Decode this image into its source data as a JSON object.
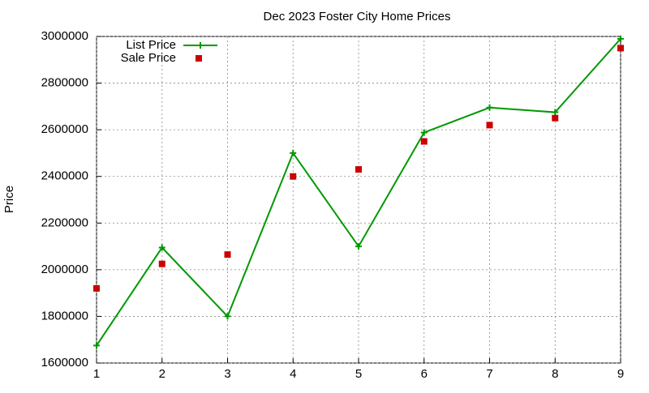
{
  "chart_data": {
    "type": "line",
    "title": "Dec 2023 Foster City Home Prices",
    "y_label": "Price",
    "x": [
      1,
      2,
      3,
      4,
      5,
      6,
      7,
      8,
      9
    ],
    "series": [
      {
        "name": "List Price",
        "color": "#009900",
        "style": "line",
        "values": [
          1675000,
          2095000,
          1800000,
          2500000,
          2100000,
          2588000,
          2695000,
          2675000,
          2990000
        ]
      },
      {
        "name": "Sale Price",
        "color": "#cc0000",
        "style": "points",
        "values": [
          1920000,
          2025000,
          2065000,
          2400000,
          2430000,
          2550000,
          2620000,
          2650000,
          2950000
        ]
      }
    ],
    "xlim": [
      1,
      9
    ],
    "xticks": [
      1,
      2,
      3,
      4,
      5,
      6,
      7,
      8,
      9
    ],
    "ylim": [
      1600000,
      3000000
    ],
    "yticks": [
      1600000,
      1800000,
      2000000,
      2200000,
      2400000,
      2600000,
      2800000,
      3000000
    ],
    "grid": true,
    "legend": "top-left"
  }
}
